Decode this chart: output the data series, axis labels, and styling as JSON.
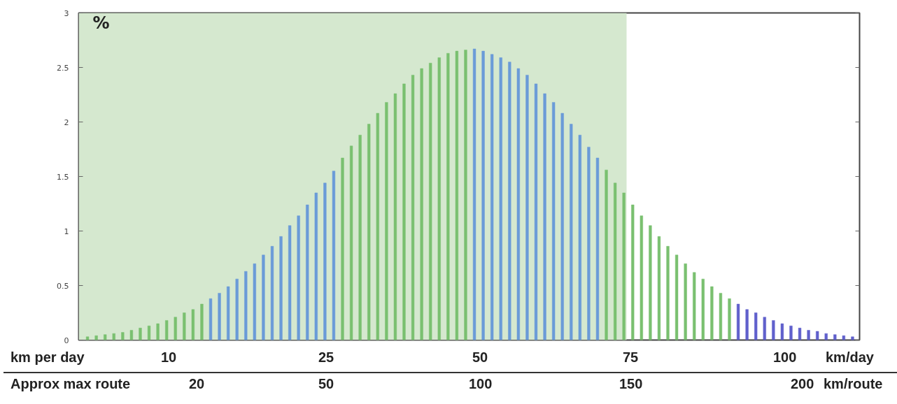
{
  "chart_data": {
    "type": "bar",
    "ylabel": "%",
    "categories": [
      null,
      null,
      null,
      null,
      null,
      null,
      null,
      null,
      null,
      null,
      null,
      null,
      null,
      null,
      null,
      null,
      null,
      null,
      null,
      null,
      null,
      null,
      null,
      null,
      null,
      null,
      null,
      null,
      null,
      null,
      null,
      null,
      null,
      null,
      null,
      null,
      null,
      null,
      null,
      null,
      null,
      null,
      null,
      null,
      null,
      null,
      null,
      null,
      null,
      null,
      null,
      null,
      null,
      null,
      null,
      null,
      null,
      null,
      null,
      null,
      null,
      null,
      null,
      null,
      null,
      null,
      null,
      null,
      null,
      null,
      null,
      null,
      null,
      null,
      null,
      null,
      null,
      null,
      null,
      null,
      null,
      null,
      null,
      null,
      null,
      null,
      null,
      null
    ],
    "values": [
      0.03,
      0.04,
      0.05,
      0.06,
      0.07,
      0.09,
      0.11,
      0.13,
      0.15,
      0.18,
      0.21,
      0.25,
      0.28,
      0.33,
      0.38,
      0.43,
      0.49,
      0.56,
      0.63,
      0.7,
      0.78,
      0.86,
      0.95,
      1.05,
      1.14,
      1.24,
      1.35,
      1.44,
      1.55,
      1.67,
      1.78,
      1.88,
      1.98,
      2.08,
      2.18,
      2.26,
      2.35,
      2.43,
      2.49,
      2.54,
      2.59,
      2.63,
      2.65,
      2.66,
      2.67,
      2.65,
      2.62,
      2.59,
      2.55,
      2.49,
      2.43,
      2.35,
      2.26,
      2.18,
      2.08,
      1.98,
      1.88,
      1.77,
      1.67,
      1.56,
      1.44,
      1.35,
      1.24,
      1.14,
      1.05,
      0.95,
      0.86,
      0.78,
      0.7,
      0.62,
      0.56,
      0.49,
      0.43,
      0.38,
      0.33,
      0.28,
      0.25,
      0.21,
      0.18,
      0.15,
      0.13,
      0.11,
      0.09,
      0.08,
      0.06,
      0.05,
      0.04,
      0.03
    ],
    "colors": [
      "#7ac070",
      "#7ac070",
      "#7ac070",
      "#7ac070",
      "#7ac070",
      "#7ac070",
      "#7ac070",
      "#7ac070",
      "#7ac070",
      "#7ac070",
      "#7ac070",
      "#7ac070",
      "#7ac070",
      "#7ac070",
      "#6a9bd8",
      "#6a9bd8",
      "#6a9bd8",
      "#6a9bd8",
      "#6a9bd8",
      "#6a9bd8",
      "#6a9bd8",
      "#6a9bd8",
      "#6a9bd8",
      "#6a9bd8",
      "#6a9bd8",
      "#6a9bd8",
      "#6a9bd8",
      "#6a9bd8",
      "#6a9bd8",
      "#7ac070",
      "#7ac070",
      "#7ac070",
      "#7ac070",
      "#7ac070",
      "#7ac070",
      "#7ac070",
      "#7ac070",
      "#7ac070",
      "#7ac070",
      "#7ac070",
      "#7ac070",
      "#7ac070",
      "#7ac070",
      "#7ac070",
      "#6a9bd8",
      "#6a9bd8",
      "#6a9bd8",
      "#6a9bd8",
      "#6a9bd8",
      "#6a9bd8",
      "#6a9bd8",
      "#6a9bd8",
      "#6a9bd8",
      "#6a9bd8",
      "#6a9bd8",
      "#6a9bd8",
      "#6a9bd8",
      "#6a9bd8",
      "#6a9bd8",
      "#7ac070",
      "#7ac070",
      "#7ac070",
      "#7ac070",
      "#7ac070",
      "#7ac070",
      "#7ac070",
      "#7ac070",
      "#7ac070",
      "#7ac070",
      "#7ac070",
      "#7ac070",
      "#7ac070",
      "#7ac070",
      "#7ac070",
      "#6060cc",
      "#6060cc",
      "#6060cc",
      "#6060cc",
      "#6060cc",
      "#6060cc",
      "#6060cc",
      "#6060cc",
      "#6060cc",
      "#6060cc",
      "#6060cc",
      "#6060cc",
      "#6060cc",
      "#6060cc"
    ],
    "ylim": [
      0,
      3
    ],
    "yticks": [
      0,
      0.5,
      1,
      1.5,
      2,
      2.5,
      3
    ],
    "tick_labels": "y",
    "annotations": [
      "km per day",
      "10",
      "25",
      "50",
      "75",
      "100",
      "km/day",
      "Approx max route",
      "20",
      "50",
      "100",
      "150",
      "200",
      "km/route"
    ]
  }
}
